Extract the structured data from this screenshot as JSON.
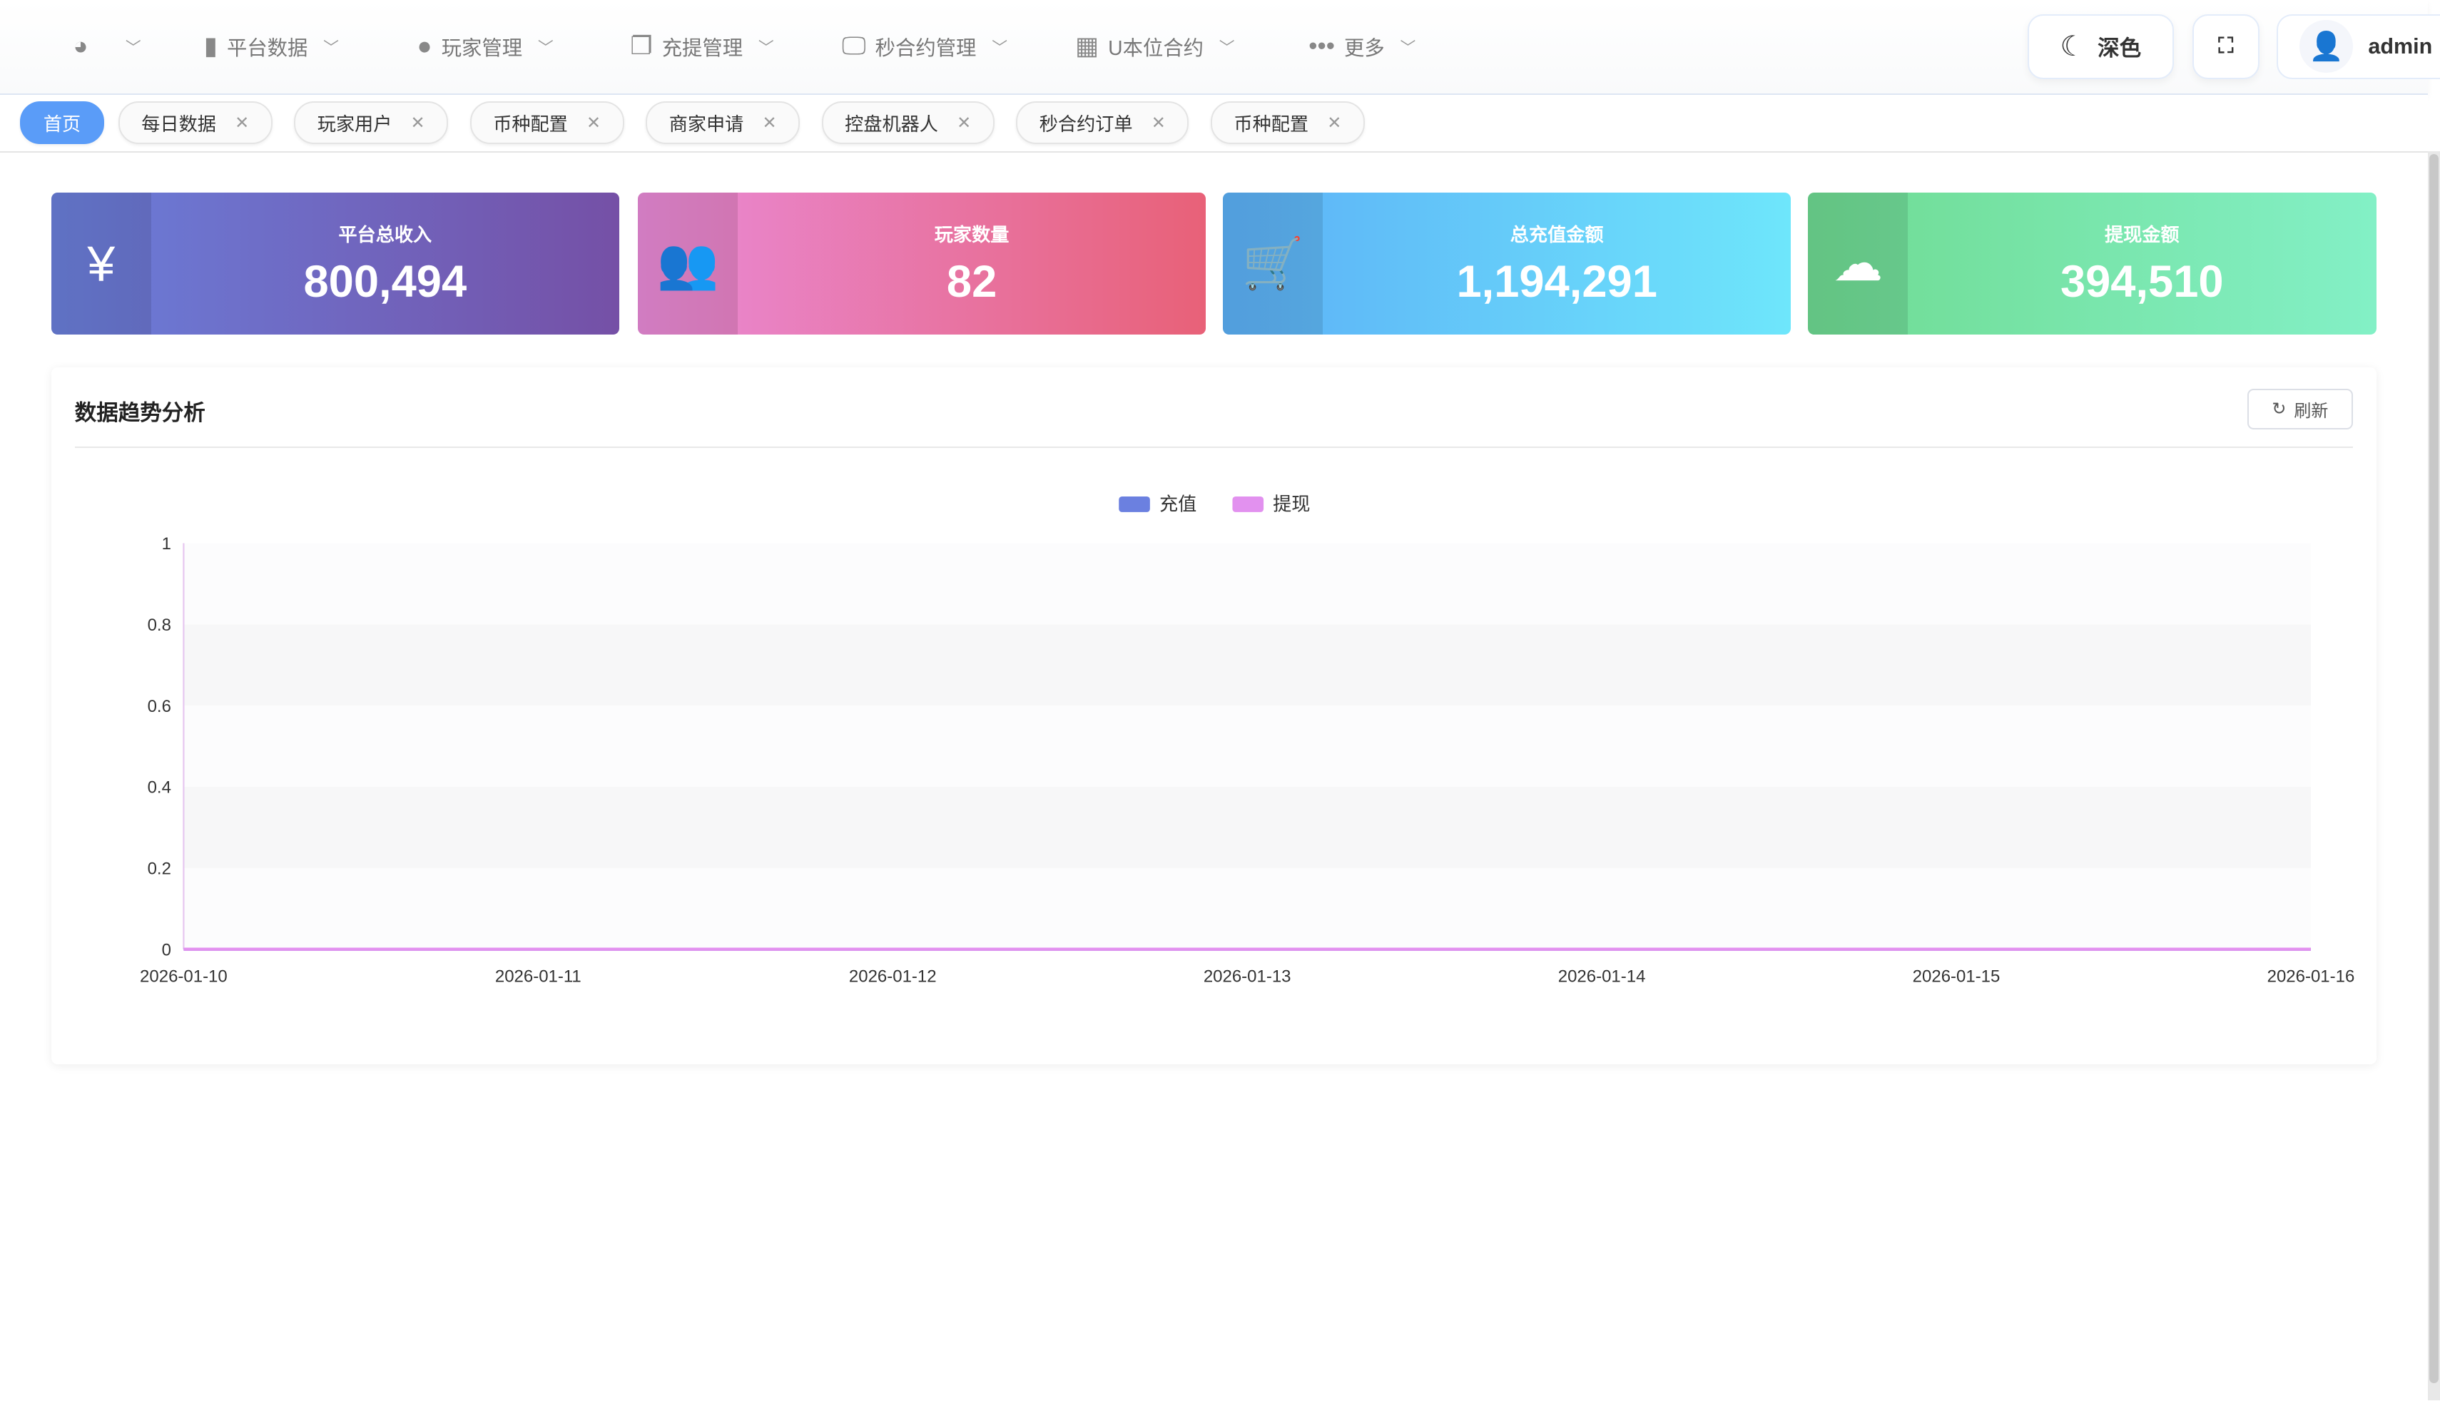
{
  "header": {
    "nav": [
      {
        "icon": "dashboard-icon",
        "label": ""
      },
      {
        "icon": "book-icon",
        "label": "平台数据"
      },
      {
        "icon": "user-icon",
        "label": "玩家管理"
      },
      {
        "icon": "documents-icon",
        "label": "充提管理"
      },
      {
        "icon": "monitor-chart-icon",
        "label": "秒合约管理"
      },
      {
        "icon": "grid-icon",
        "label": "U本位合约"
      },
      {
        "icon": "more-dots-icon",
        "label": "更多"
      }
    ],
    "theme_label": "深色",
    "user": "admin"
  },
  "tabs": [
    {
      "label": "首页",
      "active": true
    },
    {
      "label": "每日数据"
    },
    {
      "label": "玩家用户"
    },
    {
      "label": "币种配置"
    },
    {
      "label": "商家申请"
    },
    {
      "label": "控盘机器人"
    },
    {
      "label": "秒合约订单"
    },
    {
      "label": "币种配置"
    }
  ],
  "stats": [
    {
      "label": "平台总收入",
      "value": "800,494",
      "icon": "yen-icon",
      "colors": [
        "#6a7fdb",
        "#7550a6"
      ]
    },
    {
      "label": "玩家数量",
      "value": "82",
      "icon": "users-icon",
      "colors": [
        "#e98bd8",
        "#e86178"
      ]
    },
    {
      "label": "总充值金额",
      "value": "1,194,291",
      "icon": "cart-icon",
      "colors": [
        "#5cb0f7",
        "#6ee6fb"
      ]
    },
    {
      "label": "提现金额",
      "value": "394,510",
      "icon": "cloud-download-icon",
      "colors": [
        "#6fdb92",
        "#83f0c6"
      ]
    }
  ],
  "panel": {
    "title": "数据趋势分析",
    "refresh": "刷新"
  },
  "chart_data": {
    "type": "line",
    "x": [
      "2026-01-10",
      "2026-01-11",
      "2026-01-12",
      "2026-01-13",
      "2026-01-14",
      "2026-01-15",
      "2026-01-16"
    ],
    "series": [
      {
        "name": "充值",
        "values": [
          0,
          0,
          0,
          0,
          0,
          0,
          0
        ],
        "color": "#6b80e0"
      },
      {
        "name": "提现",
        "values": [
          0,
          0,
          0,
          0,
          0,
          0,
          0
        ],
        "color": "#e291ef"
      }
    ],
    "ylim": [
      0,
      1
    ],
    "yticks": [
      "0",
      "0.2",
      "0.4",
      "0.6",
      "0.8",
      "1"
    ],
    "legend": "top-center",
    "grid": "striped bands"
  }
}
